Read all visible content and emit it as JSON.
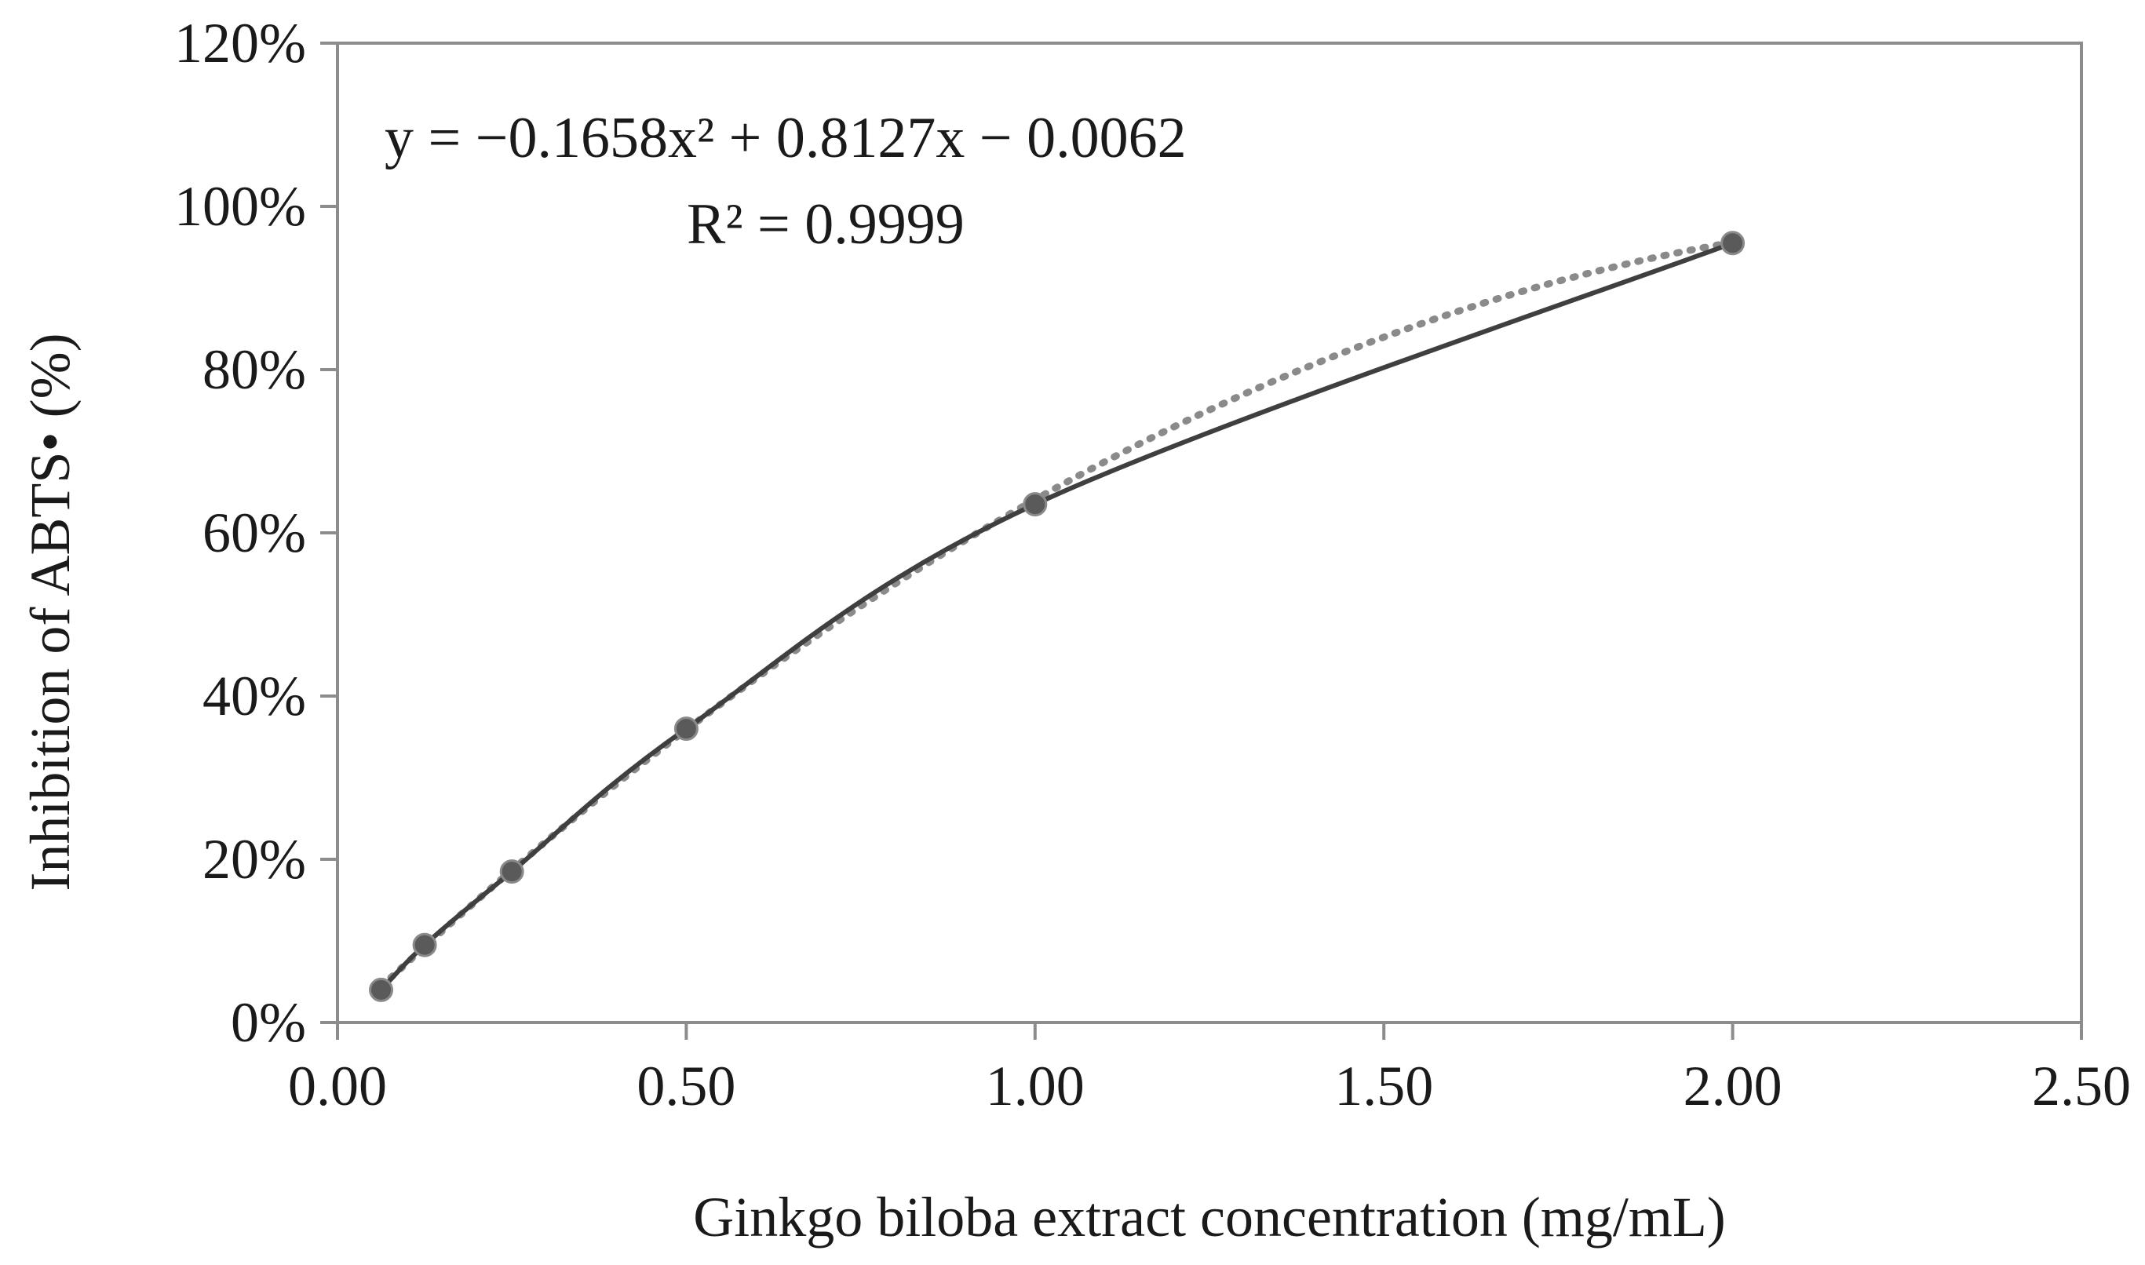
{
  "chart_data": {
    "type": "line",
    "x": [
      0.0625,
      0.125,
      0.25,
      0.5,
      1.0,
      2.0
    ],
    "series": [
      {
        "values": [
          0.04,
          0.095,
          0.185,
          0.36,
          0.635,
          0.955
        ],
        "color": "#3f3f3f",
        "style": "solid",
        "marker": "circle"
      },
      {
        "trendline": "polynomial",
        "coefficients": [
          -0.1658,
          0.8127,
          -0.0062
        ],
        "color": "#8a8a8a",
        "style": "dotted"
      }
    ],
    "xlabel": "Ginkgo biloba extract concentration (mg/mL)",
    "ylabel": "Inhibition of ABTS• (%)",
    "xlim": [
      0,
      2.5
    ],
    "ylim": [
      0,
      1.2
    ],
    "xticks": [
      0,
      0.5,
      1.0,
      1.5,
      2.0,
      2.5
    ],
    "xtick_labels": [
      "0.00",
      "0.50",
      "1.00",
      "1.50",
      "2.00",
      "2.50"
    ],
    "yticks": [
      0,
      0.2,
      0.4,
      0.6,
      0.8,
      1.0,
      1.2
    ],
    "ytick_labels": [
      "0%",
      "20%",
      "40%",
      "60%",
      "80%",
      "100%",
      "120%"
    ],
    "grid": false,
    "annotations": {
      "equation": "y = −0.1658x² + 0.8127x − 0.0062",
      "r_squared": "R² = 0.9999"
    }
  }
}
